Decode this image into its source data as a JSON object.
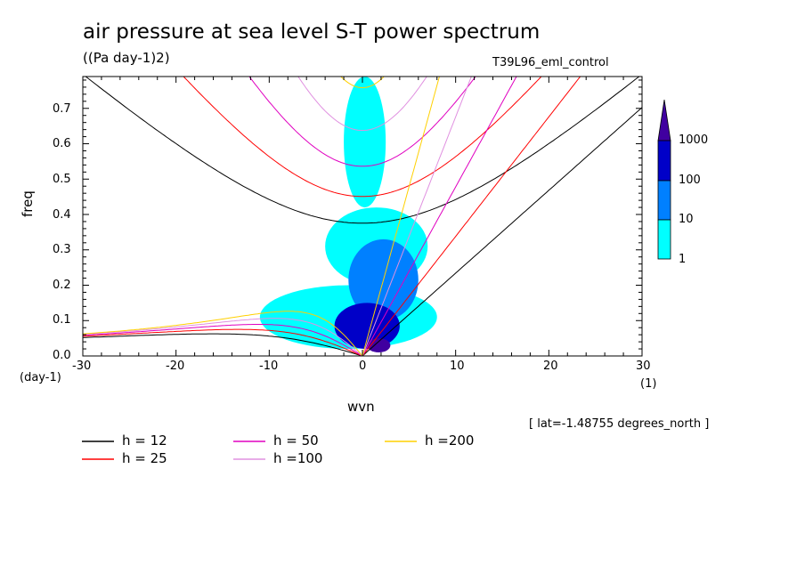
{
  "title": "air pressure at sea level S-T power spectrum",
  "units": "((Pa day-1)2)",
  "experiment": "T39L96_eml_control",
  "annotation": "[ lat=-1.48755 degrees_north ]",
  "colors": {
    "level_1": "#00ffff",
    "level_10": "#0080ff",
    "level_100": "#0000c8",
    "level_1000": "#4000a0",
    "h12": "#000000",
    "h25": "#ff0000",
    "h50": "#e000c0",
    "h100": "#e090e0",
    "h200": "#ffd000"
  },
  "chart_data": {
    "type": "heatmap",
    "xlabel": "wvn",
    "xunit": "(1)",
    "ylabel": "freq",
    "yunit": "(day-1)",
    "xlim": [
      -30,
      30
    ],
    "ylim": [
      0,
      0.79
    ],
    "xticks": [
      "-30",
      "-20",
      "-10",
      "0",
      "10",
      "20",
      "30"
    ],
    "yticks": [
      "0.0",
      "0.1",
      "0.2",
      "0.3",
      "0.4",
      "0.5",
      "0.6",
      "0.7"
    ],
    "colorbar": {
      "levels": [
        1,
        10,
        100,
        1000
      ],
      "labels": [
        "1",
        "10",
        "100",
        "1000"
      ]
    },
    "power_regions": [
      {
        "level": 1,
        "wvn_min": -2,
        "wvn_max": 2.5,
        "freq_min": 0.42,
        "freq_max": 0.79
      },
      {
        "level": 1,
        "wvn_min": -4,
        "wvn_max": 7,
        "freq_min": 0.2,
        "freq_max": 0.42
      },
      {
        "level": 1,
        "wvn_min": -11,
        "wvn_max": 8,
        "freq_min": 0.02,
        "freq_max": 0.2
      },
      {
        "level": 10,
        "wvn_min": -1.5,
        "wvn_max": 6,
        "freq_min": 0.1,
        "freq_max": 0.33
      },
      {
        "level": 100,
        "wvn_min": -3,
        "wvn_max": 4,
        "freq_min": 0.02,
        "freq_max": 0.15
      },
      {
        "level": 1000,
        "wvn_min": 0.5,
        "wvn_max": 3,
        "freq_min": 0.01,
        "freq_max": 0.05
      }
    ],
    "series": [
      {
        "name": "h = 12",
        "depth": 12
      },
      {
        "name": "h = 25",
        "depth": 25
      },
      {
        "name": "h = 50",
        "depth": 50
      },
      {
        "name": "h =100",
        "depth": 100
      },
      {
        "name": "h =200",
        "depth": 200
      }
    ]
  }
}
